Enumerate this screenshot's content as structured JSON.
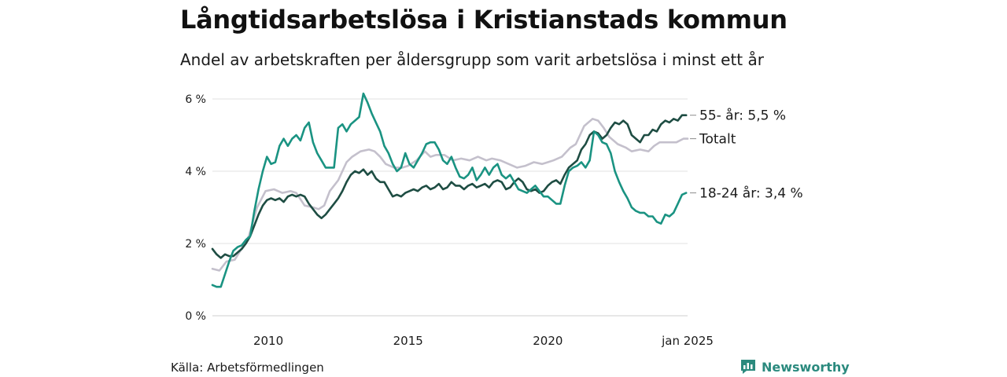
{
  "header": {
    "title": "Långtidsarbetslösa i Kristianstads kommun",
    "subtitle": "Andel av arbetskraften per åldersgrupp som varit arbetslösa i minst ett år"
  },
  "footer": {
    "source": "Källa: Arbetsförmedlingen",
    "brand": "Newsworthy"
  },
  "chart_data": {
    "type": "line",
    "title": "Långtidsarbetslösa i Kristianstads kommun",
    "subtitle": "Andel av arbetskraften per åldersgrupp som varit arbetslösa i minst ett år",
    "xlabel": "",
    "ylabel": "",
    "xlim": [
      2008.0,
      2025.0
    ],
    "ylim": [
      0,
      6
    ],
    "y_ticks": [
      0,
      2,
      4,
      6
    ],
    "y_tick_labels": [
      "0 %",
      "2 %",
      "4 %",
      "6 %"
    ],
    "x_ticks": [
      2010,
      2015,
      2020,
      2025
    ],
    "x_tick_labels": [
      "2010",
      "2015",
      "2020",
      "jan 2025"
    ],
    "grid": "horizontal",
    "legend": "direct labels at right end of lines",
    "series": [
      {
        "name": "Totalt",
        "end_label": "Totalt",
        "color": "#c4c0cc",
        "x": [
          2008.0,
          2008.25,
          2008.5,
          2008.8,
          2009.0,
          2009.3,
          2009.6,
          2009.9,
          2010.2,
          2010.5,
          2010.8,
          2011.0,
          2011.3,
          2011.6,
          2011.8,
          2012.0,
          2012.2,
          2012.5,
          2012.8,
          2013.0,
          2013.3,
          2013.6,
          2013.8,
          2014.0,
          2014.2,
          2014.5,
          2014.8,
          2015.0,
          2015.3,
          2015.6,
          2015.8,
          2016.0,
          2016.3,
          2016.6,
          2016.9,
          2017.2,
          2017.5,
          2017.8,
          2018.0,
          2018.3,
          2018.6,
          2018.9,
          2019.2,
          2019.5,
          2019.8,
          2020.0,
          2020.2,
          2020.5,
          2020.8,
          2021.0,
          2021.3,
          2021.6,
          2021.8,
          2022.0,
          2022.2,
          2022.5,
          2022.8,
          2023.0,
          2023.3,
          2023.6,
          2023.8,
          2024.0,
          2024.3,
          2024.6,
          2024.85,
          2025.0
        ],
        "values": [
          1.3,
          1.25,
          1.5,
          1.55,
          1.8,
          2.2,
          3.0,
          3.45,
          3.5,
          3.4,
          3.45,
          3.4,
          3.05,
          3.0,
          2.95,
          3.05,
          3.45,
          3.75,
          4.25,
          4.4,
          4.55,
          4.6,
          4.55,
          4.4,
          4.2,
          4.1,
          4.1,
          4.15,
          4.3,
          4.55,
          4.4,
          4.45,
          4.45,
          4.3,
          4.35,
          4.3,
          4.4,
          4.3,
          4.35,
          4.3,
          4.2,
          4.1,
          4.15,
          4.25,
          4.2,
          4.25,
          4.3,
          4.4,
          4.65,
          4.75,
          5.25,
          5.45,
          5.4,
          5.2,
          4.95,
          4.75,
          4.65,
          4.55,
          4.6,
          4.55,
          4.7,
          4.8,
          4.8,
          4.8,
          4.9,
          4.9
        ]
      },
      {
        "name": "55- år",
        "end_label": "55- år: 5,5 %",
        "color": "#1e4d43",
        "x": [
          2008.0,
          2008.15,
          2008.3,
          2008.45,
          2008.6,
          2008.75,
          2008.9,
          2009.05,
          2009.2,
          2009.35,
          2009.5,
          2009.65,
          2009.8,
          2009.95,
          2010.1,
          2010.25,
          2010.4,
          2010.55,
          2010.7,
          2010.85,
          2011.0,
          2011.15,
          2011.3,
          2011.45,
          2011.6,
          2011.75,
          2011.9,
          2012.05,
          2012.2,
          2012.35,
          2012.5,
          2012.65,
          2012.8,
          2012.95,
          2013.1,
          2013.25,
          2013.4,
          2013.55,
          2013.7,
          2013.85,
          2014.0,
          2014.15,
          2014.3,
          2014.45,
          2014.6,
          2014.75,
          2014.9,
          2015.05,
          2015.2,
          2015.35,
          2015.5,
          2015.65,
          2015.8,
          2015.95,
          2016.1,
          2016.25,
          2016.4,
          2016.55,
          2016.7,
          2016.85,
          2017.0,
          2017.15,
          2017.3,
          2017.45,
          2017.6,
          2017.75,
          2017.9,
          2018.05,
          2018.2,
          2018.35,
          2018.5,
          2018.65,
          2018.8,
          2018.95,
          2019.1,
          2019.25,
          2019.4,
          2019.55,
          2019.7,
          2019.85,
          2020.0,
          2020.15,
          2020.3,
          2020.45,
          2020.6,
          2020.75,
          2020.9,
          2021.05,
          2021.2,
          2021.35,
          2021.5,
          2021.65,
          2021.8,
          2021.95,
          2022.1,
          2022.25,
          2022.4,
          2022.55,
          2022.7,
          2022.85,
          2023.0,
          2023.15,
          2023.3,
          2023.45,
          2023.6,
          2023.75,
          2023.9,
          2024.05,
          2024.2,
          2024.35,
          2024.5,
          2024.65,
          2024.8,
          2024.95
        ],
        "values": [
          1.85,
          1.7,
          1.6,
          1.7,
          1.65,
          1.65,
          1.75,
          1.85,
          2.0,
          2.2,
          2.5,
          2.8,
          3.05,
          3.2,
          3.25,
          3.2,
          3.25,
          3.15,
          3.3,
          3.35,
          3.3,
          3.35,
          3.3,
          3.1,
          2.95,
          2.8,
          2.7,
          2.8,
          2.95,
          3.1,
          3.25,
          3.45,
          3.7,
          3.9,
          4.0,
          3.95,
          4.05,
          3.9,
          4.0,
          3.8,
          3.7,
          3.7,
          3.5,
          3.3,
          3.35,
          3.3,
          3.4,
          3.45,
          3.5,
          3.45,
          3.55,
          3.6,
          3.5,
          3.55,
          3.65,
          3.5,
          3.55,
          3.7,
          3.6,
          3.6,
          3.5,
          3.6,
          3.65,
          3.55,
          3.6,
          3.65,
          3.55,
          3.7,
          3.75,
          3.7,
          3.5,
          3.55,
          3.7,
          3.8,
          3.7,
          3.5,
          3.45,
          3.5,
          3.4,
          3.45,
          3.6,
          3.7,
          3.75,
          3.65,
          3.9,
          4.1,
          4.2,
          4.3,
          4.6,
          4.75,
          5.0,
          5.1,
          5.05,
          4.9,
          5.0,
          5.2,
          5.35,
          5.3,
          5.4,
          5.3,
          5.0,
          4.9,
          4.8,
          5.0,
          5.0,
          5.15,
          5.1,
          5.3,
          5.4,
          5.35,
          5.45,
          5.4,
          5.55,
          5.55
        ]
      },
      {
        "name": "18-24 år",
        "end_label": "18-24 år: 3,4 %",
        "color": "#1a9382",
        "x": [
          2008.0,
          2008.15,
          2008.3,
          2008.45,
          2008.6,
          2008.75,
          2008.9,
          2009.05,
          2009.2,
          2009.35,
          2009.5,
          2009.65,
          2009.8,
          2009.95,
          2010.1,
          2010.25,
          2010.4,
          2010.55,
          2010.7,
          2010.85,
          2011.0,
          2011.15,
          2011.3,
          2011.45,
          2011.6,
          2011.75,
          2011.9,
          2012.05,
          2012.2,
          2012.35,
          2012.5,
          2012.65,
          2012.8,
          2012.95,
          2013.1,
          2013.25,
          2013.4,
          2013.55,
          2013.7,
          2013.85,
          2014.0,
          2014.15,
          2014.3,
          2014.45,
          2014.6,
          2014.75,
          2014.9,
          2015.05,
          2015.2,
          2015.35,
          2015.5,
          2015.65,
          2015.8,
          2015.95,
          2016.1,
          2016.25,
          2016.4,
          2016.55,
          2016.7,
          2016.85,
          2017.0,
          2017.15,
          2017.3,
          2017.45,
          2017.6,
          2017.75,
          2017.9,
          2018.05,
          2018.2,
          2018.35,
          2018.5,
          2018.65,
          2018.8,
          2018.95,
          2019.1,
          2019.25,
          2019.4,
          2019.55,
          2019.7,
          2019.85,
          2020.0,
          2020.15,
          2020.3,
          2020.45,
          2020.6,
          2020.75,
          2020.9,
          2021.05,
          2021.2,
          2021.35,
          2021.5,
          2021.65,
          2021.8,
          2021.95,
          2022.1,
          2022.25,
          2022.4,
          2022.55,
          2022.7,
          2022.85,
          2023.0,
          2023.15,
          2023.3,
          2023.45,
          2023.6,
          2023.75,
          2023.9,
          2024.05,
          2024.2,
          2024.35,
          2024.5,
          2024.65,
          2024.8,
          2024.95
        ],
        "values": [
          0.85,
          0.8,
          0.8,
          1.15,
          1.5,
          1.8,
          1.9,
          1.95,
          2.1,
          2.2,
          2.9,
          3.5,
          4.0,
          4.4,
          4.2,
          4.25,
          4.7,
          4.9,
          4.7,
          4.9,
          5.0,
          4.85,
          5.2,
          5.35,
          4.8,
          4.5,
          4.3,
          4.1,
          4.1,
          4.1,
          5.2,
          5.3,
          5.1,
          5.3,
          5.4,
          5.5,
          6.15,
          5.9,
          5.6,
          5.35,
          5.1,
          4.7,
          4.5,
          4.2,
          4.0,
          4.1,
          4.5,
          4.2,
          4.1,
          4.3,
          4.5,
          4.75,
          4.8,
          4.8,
          4.6,
          4.3,
          4.2,
          4.4,
          4.1,
          3.85,
          3.8,
          3.9,
          4.1,
          3.75,
          3.9,
          4.1,
          3.9,
          4.1,
          4.2,
          3.9,
          3.8,
          3.9,
          3.7,
          3.5,
          3.45,
          3.4,
          3.5,
          3.6,
          3.45,
          3.3,
          3.3,
          3.2,
          3.1,
          3.1,
          3.6,
          4.0,
          4.1,
          4.15,
          4.25,
          4.1,
          4.3,
          5.1,
          5.0,
          4.8,
          4.75,
          4.5,
          4.0,
          3.7,
          3.45,
          3.25,
          3.0,
          2.9,
          2.85,
          2.85,
          2.75,
          2.75,
          2.6,
          2.55,
          2.8,
          2.75,
          2.85,
          3.1,
          3.35,
          3.4
        ]
      }
    ]
  }
}
